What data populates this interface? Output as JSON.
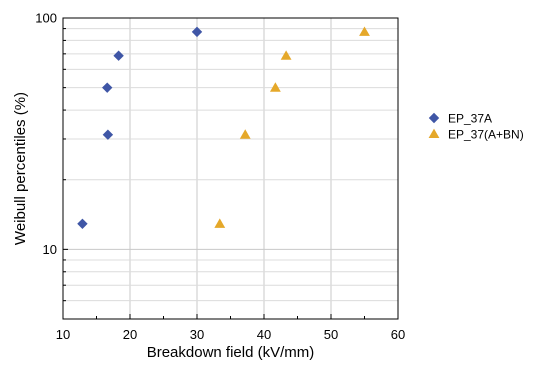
{
  "chart_data": {
    "type": "scatter",
    "xlabel": "Breakdown field (kV/mm)",
    "ylabel": "Weibull percentiles (%)",
    "xlim": [
      10,
      60
    ],
    "ylim": [
      5,
      100
    ],
    "y_scale": "log",
    "grid": true,
    "legend_position": "right",
    "x_ticks": [
      10,
      20,
      30,
      40,
      50,
      60
    ],
    "y_ticks": [
      10,
      100
    ],
    "x_tick_labels": [
      "10",
      "20",
      "30",
      "40",
      "50",
      "60"
    ],
    "y_tick_labels": [
      "10",
      "100"
    ],
    "series": [
      {
        "name": "EP_37A",
        "marker": "diamond",
        "color": "#3f56a6",
        "points": [
          {
            "x": 12.9,
            "y": 12.9
          },
          {
            "x": 16.7,
            "y": 31.3
          },
          {
            "x": 16.6,
            "y": 50.0
          },
          {
            "x": 18.3,
            "y": 68.7
          },
          {
            "x": 30.0,
            "y": 87.1
          }
        ]
      },
      {
        "name": "EP_37(A+BN)",
        "marker": "triangle",
        "color": "#e5a82a",
        "points": [
          {
            "x": 33.4,
            "y": 12.9
          },
          {
            "x": 37.2,
            "y": 31.3
          },
          {
            "x": 41.7,
            "y": 50.0
          },
          {
            "x": 43.3,
            "y": 68.7
          },
          {
            "x": 55.0,
            "y": 87.1
          }
        ]
      }
    ]
  }
}
